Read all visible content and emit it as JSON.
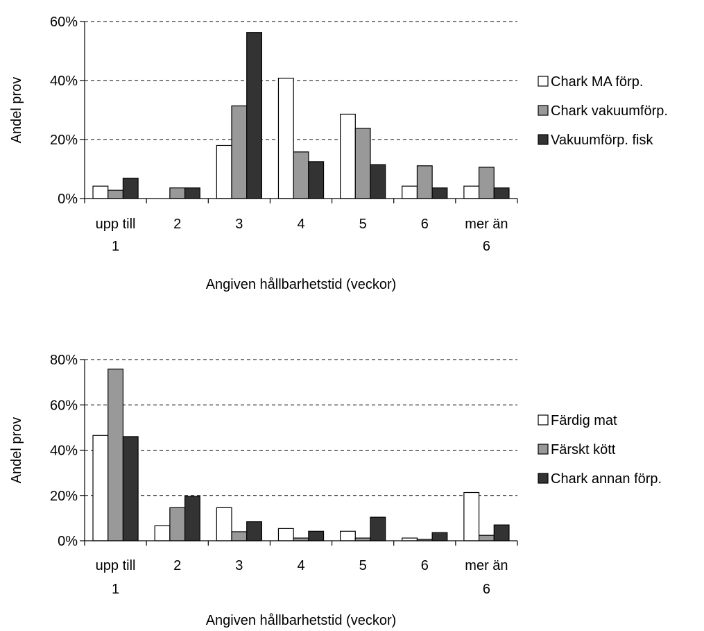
{
  "chart_data": [
    {
      "type": "bar",
      "xlabel": "Angiven hållbarhetstid (veckor)",
      "ylabel": "Andel prov",
      "ylim": [
        0,
        60
      ],
      "yticks": [
        "0%",
        "20%",
        "40%",
        "60%"
      ],
      "ytick_values": [
        0,
        20,
        40,
        60
      ],
      "y_unit": "%",
      "grid": "horizontal-dashed",
      "legend_position": "right",
      "categories": [
        [
          "upp till",
          "1"
        ],
        [
          "2"
        ],
        [
          "3"
        ],
        [
          "4"
        ],
        [
          "5"
        ],
        [
          "6"
        ],
        [
          "mer än",
          "6"
        ]
      ],
      "series": [
        {
          "name": "Chark MA förp.",
          "color": "#ffffff",
          "values": [
            4.2,
            0,
            18,
            40.8,
            28.6,
            4.2,
            4.2
          ]
        },
        {
          "name": "Chark vakuumförp.",
          "color": "#999999",
          "values": [
            2.8,
            3.6,
            31.4,
            15.8,
            23.8,
            11.1,
            10.6
          ]
        },
        {
          "name": "Vakuumförp. fisk",
          "color": "#333333",
          "values": [
            6.9,
            3.6,
            56.3,
            12.5,
            11.5,
            3.6,
            3.6
          ]
        }
      ]
    },
    {
      "type": "bar",
      "xlabel": "Angiven hållbarhetstid (veckor)",
      "ylabel": "Andel prov",
      "ylim": [
        0,
        80
      ],
      "yticks": [
        "0%",
        "20%",
        "40%",
        "60%",
        "80%"
      ],
      "ytick_values": [
        0,
        20,
        40,
        60,
        80
      ],
      "y_unit": "%",
      "grid": "horizontal-dashed",
      "legend_position": "right",
      "categories": [
        [
          "upp till",
          "1"
        ],
        [
          "2"
        ],
        [
          "3"
        ],
        [
          "4"
        ],
        [
          "5"
        ],
        [
          "6"
        ],
        [
          "mer än",
          "6"
        ]
      ],
      "series": [
        {
          "name": "Färdig mat",
          "color": "#ffffff",
          "values": [
            46.5,
            6.6,
            14.6,
            5.4,
            4.2,
            1.2,
            21.3
          ]
        },
        {
          "name": "Färskt kött",
          "color": "#999999",
          "values": [
            75.8,
            14.6,
            4.0,
            1.2,
            1.2,
            0.6,
            2.4
          ]
        },
        {
          "name": "Chark annan förp.",
          "color": "#333333",
          "values": [
            46.0,
            19.6,
            8.4,
            4.2,
            10.4,
            3.6,
            7.0
          ]
        }
      ]
    }
  ]
}
